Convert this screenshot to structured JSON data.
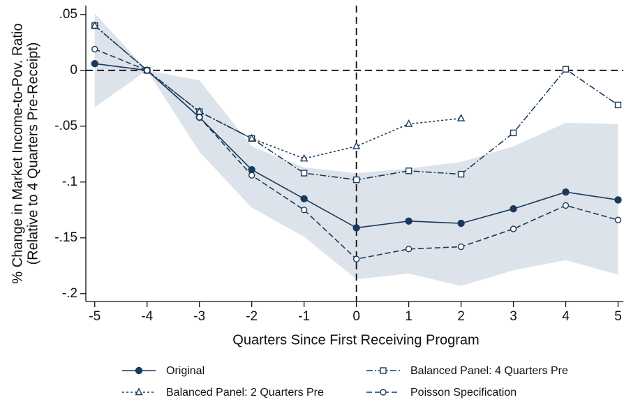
{
  "chart_data": {
    "type": "line",
    "xlabel": "Quarters Since First Receiving Program",
    "ylabel": [
      "% Change in Market Income-to-Pov. Ratio",
      "(Relative to 4 Quarters Pre-Receipt)"
    ],
    "x": [
      -5,
      -4,
      -3,
      -2,
      -1,
      0,
      1,
      2,
      3,
      4,
      5
    ],
    "xlim": [
      -5.17,
      5.1
    ],
    "ylim": [
      -0.207,
      0.058
    ],
    "xticks": [
      -5,
      -4,
      -3,
      -2,
      -1,
      0,
      1,
      2,
      3,
      4,
      5
    ],
    "yticks": [
      {
        "value": 0.05,
        "label": ".05"
      },
      0,
      {
        "value": -0.05,
        "label": "-.05"
      },
      {
        "value": -0.1,
        "label": "-.1"
      },
      {
        "value": -0.15,
        "label": "-.15"
      },
      {
        "value": -0.2,
        "label": "-.2"
      }
    ],
    "reference_lines": {
      "x": 0,
      "y": 0
    },
    "band": {
      "color": "#dde3ea",
      "upper": [
        0.051,
        0,
        -0.009,
        -0.068,
        -0.087,
        -0.092,
        -0.088,
        -0.082,
        -0.068,
        -0.047,
        -0.048
      ],
      "lower": [
        -0.033,
        0,
        -0.073,
        -0.123,
        -0.149,
        -0.187,
        -0.182,
        -0.193,
        -0.179,
        -0.17,
        -0.183
      ]
    },
    "series": [
      {
        "name": "Original",
        "color": "#1a3a5c",
        "marker": "circle-filled",
        "dash": "none",
        "values": [
          0.006,
          0,
          -0.042,
          -0.089,
          -0.115,
          -0.141,
          -0.135,
          -0.137,
          -0.124,
          -0.109,
          -0.116
        ]
      },
      {
        "name": "Balanced Panel: 4 Quarters Pre",
        "color": "#1a3a5c",
        "marker": "square",
        "dash": "9,3,2,3",
        "values": [
          0.04,
          0,
          -0.037,
          -0.061,
          -0.092,
          -0.098,
          -0.09,
          -0.093,
          -0.056,
          0.001,
          -0.031
        ]
      },
      {
        "name": "Balanced Panel: 2 Quarters Pre",
        "color": "#1a3a5c",
        "marker": "triangle",
        "dash": "3,3",
        "values": [
          0.04,
          0,
          -0.037,
          -0.061,
          -0.079,
          -0.068,
          -0.048,
          -0.043,
          null,
          null,
          null
        ]
      },
      {
        "name": "Poisson Specification",
        "color": "#1a3a5c",
        "marker": "circle",
        "dash": "8,4",
        "values": [
          0.019,
          0,
          -0.042,
          -0.094,
          -0.125,
          -0.169,
          -0.16,
          -0.158,
          -0.142,
          -0.121,
          -0.134
        ]
      }
    ]
  }
}
